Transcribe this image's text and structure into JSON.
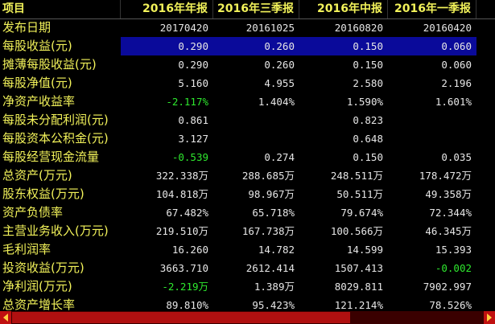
{
  "header": {
    "label": "项目",
    "columns": [
      "2016年年报",
      "2016年三季报",
      "2016年中报",
      "2016年一季报"
    ]
  },
  "selected_row": 1,
  "rows": [
    {
      "label": "发布日期",
      "values": [
        "20170420",
        "20161025",
        "20160820",
        "20160420"
      ]
    },
    {
      "label": "每股收益(元)",
      "values": [
        "0.290",
        "0.260",
        "0.150",
        "0.060"
      ]
    },
    {
      "label": "摊薄每股收益(元)",
      "values": [
        "0.290",
        "0.260",
        "0.150",
        "0.060"
      ]
    },
    {
      "label": "每股净值(元)",
      "values": [
        "5.160",
        "4.955",
        "2.580",
        "2.196"
      ]
    },
    {
      "label": "净资产收益率",
      "values": [
        "-2.117%",
        "1.404%",
        "1.590%",
        "1.601%"
      ]
    },
    {
      "label": "每股未分配利润(元)",
      "values": [
        "0.861",
        null,
        "0.823",
        null
      ]
    },
    {
      "label": "每股资本公积金(元)",
      "values": [
        "3.127",
        null,
        "0.648",
        null
      ]
    },
    {
      "label": "每股经营现金流量",
      "values": [
        "-0.539",
        "0.274",
        "0.150",
        "0.035"
      ]
    },
    {
      "label": "总资产(万元)",
      "values": [
        "322.338万",
        "288.685万",
        "248.511万",
        "178.472万"
      ]
    },
    {
      "label": "股东权益(万元)",
      "values": [
        "104.818万",
        "98.967万",
        "50.511万",
        "49.358万"
      ]
    },
    {
      "label": "资产负债率",
      "values": [
        "67.482%",
        "65.718%",
        "79.674%",
        "72.344%"
      ]
    },
    {
      "label": "主营业务收入(万元)",
      "values": [
        "219.510万",
        "167.738万",
        "100.566万",
        "46.345万"
      ]
    },
    {
      "label": "毛利润率",
      "values": [
        "16.260",
        "14.782",
        "14.599",
        "15.393"
      ]
    },
    {
      "label": "投资收益(万元)",
      "values": [
        "3663.710",
        "2612.414",
        "1507.413",
        "-0.002"
      ]
    },
    {
      "label": "净利润(万元)",
      "values": [
        "-2.219万",
        "1.389万",
        "8029.811",
        "7902.997"
      ]
    },
    {
      "label": "总资产增长率",
      "values": [
        "89.810%",
        "95.423%",
        "121.214%",
        "78.526%"
      ]
    }
  ]
}
